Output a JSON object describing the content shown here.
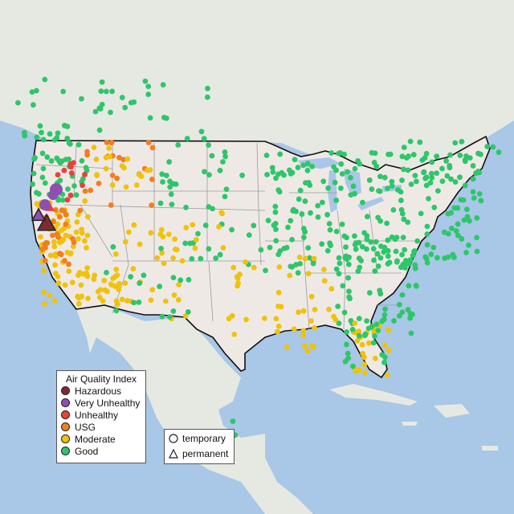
{
  "legend": {
    "title": "Air Quality Index",
    "categories": [
      {
        "label": "Hazardous",
        "color": "#7e2a35"
      },
      {
        "label": "Very Unhealthy",
        "color": "#8e4fb0"
      },
      {
        "label": "Unhealthy",
        "color": "#e8413b"
      },
      {
        "label": "USG",
        "color": "#f07f1e"
      },
      {
        "label": "Moderate",
        "color": "#f0c20c"
      },
      {
        "label": "Good",
        "color": "#2ec66a"
      }
    ]
  },
  "monitor_types": {
    "temporary": {
      "label": "temporary",
      "shape": "circle"
    },
    "permanent": {
      "label": "permanent",
      "shape": "triangle"
    }
  },
  "colors": {
    "water": "#a9c7e6",
    "land": "#efe9e6",
    "foreign_land": "#e3e7e0",
    "state_border": "#9a9a9a",
    "national_border": "#111111",
    "no_data": "#c8c8c8"
  }
}
